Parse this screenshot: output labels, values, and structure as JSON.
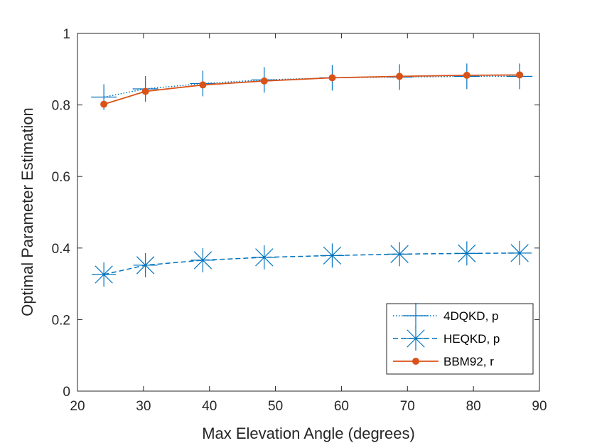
{
  "chart_data": {
    "type": "line",
    "xlabel": "Max Elevation Angle (degrees)",
    "ylabel": "Optimal Parameter Estimation",
    "xlim": [
      20,
      90
    ],
    "ylim": [
      0,
      1
    ],
    "xticks": [
      20,
      30,
      40,
      50,
      60,
      70,
      80,
      90
    ],
    "yticks": [
      0,
      0.2,
      0.4,
      0.6,
      0.8,
      1
    ],
    "ytick_labels": [
      "0",
      "0.2",
      "0.4",
      "0.6",
      "0.8",
      "1"
    ],
    "grid": false,
    "legend_position": "bottom-right",
    "x": [
      24,
      30.3,
      39,
      48.3,
      58.6,
      68.8,
      79,
      87
    ],
    "series": [
      {
        "name": "4DQKD, p",
        "values": [
          0.822,
          0.845,
          0.86,
          0.87,
          0.876,
          0.878,
          0.88,
          0.88
        ],
        "color": "#0072BD",
        "line": "dotted",
        "marker": "plus"
      },
      {
        "name": "HEQKD, p",
        "values": [
          0.326,
          0.352,
          0.366,
          0.374,
          0.379,
          0.383,
          0.385,
          0.386
        ],
        "color": "#0072BD",
        "line": "dashed",
        "marker": "star"
      },
      {
        "name": "BBM92, r",
        "values": [
          0.802,
          0.838,
          0.856,
          0.867,
          0.876,
          0.88,
          0.883,
          0.884
        ],
        "color": "#D95319",
        "line": "solid",
        "marker": "dot"
      }
    ]
  }
}
